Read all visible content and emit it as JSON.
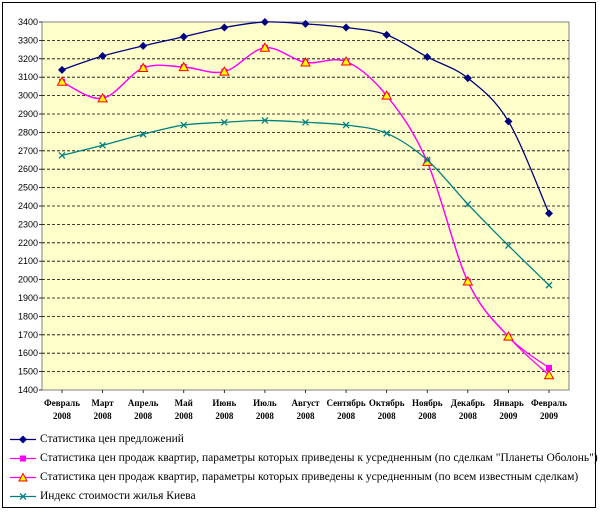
{
  "chart_data": {
    "type": "line",
    "title": "",
    "xlabel": "",
    "ylabel": "",
    "ylim": [
      1400,
      3400
    ],
    "ytick_step": 100,
    "grid": "horizontal dashed",
    "plot_background": "#FFFFCC",
    "categories": [
      [
        "Февраль",
        "2008"
      ],
      [
        "Март",
        "2008"
      ],
      [
        "Апрель",
        "2008"
      ],
      [
        "Май",
        "2008"
      ],
      [
        "Июнь",
        "2008"
      ],
      [
        "Июль",
        "2008"
      ],
      [
        "Август",
        "2008"
      ],
      [
        "Сентябрь",
        "2008"
      ],
      [
        "Октябрь",
        "2008"
      ],
      [
        "Ноябрь",
        "2008"
      ],
      [
        "Декабрь",
        "2008"
      ],
      [
        "Январь",
        "2009"
      ],
      [
        "Февраль",
        "2009"
      ]
    ],
    "y_ticks": [
      "1400",
      "1500",
      "1600",
      "1700",
      "1800",
      "1900",
      "2000",
      "2100",
      "2200",
      "2300",
      "2400",
      "2500",
      "2600",
      "2700",
      "2800",
      "2900",
      "3000",
      "3100",
      "3200",
      "3300",
      "3400"
    ],
    "series": [
      {
        "name": "Статистика цен предложений",
        "color": "#000080",
        "marker": "diamond",
        "values": [
          3140,
          3215,
          3270,
          3320,
          3370,
          3400,
          3390,
          3370,
          3330,
          3210,
          3095,
          2860,
          2360
        ]
      },
      {
        "name": "Статистика цен продаж квартир, параметры которых приведены к усредненным (по сделкам \"Планеты Оболонь\")",
        "color": "#FF00FF",
        "marker": "square",
        "values": [
          3075,
          2985,
          3150,
          3155,
          3130,
          3260,
          3180,
          3185,
          3000,
          2640,
          1990,
          1690,
          1520
        ]
      },
      {
        "name": "Статистика цен продаж квартир, параметры которых приведены к усредненным (по всем известным сделкам)",
        "color": "#FF00FF",
        "marker": "triangle",
        "values": [
          3075,
          2985,
          3150,
          3155,
          3130,
          3260,
          3180,
          3185,
          3000,
          2640,
          1990,
          1690,
          1480
        ]
      },
      {
        "name": "Индекс стоимости жилья Киева",
        "color": "#008080",
        "marker": "x",
        "values": [
          2675,
          2730,
          2790,
          2840,
          2855,
          2865,
          2855,
          2840,
          2795,
          2650,
          2410,
          2185,
          1970
        ]
      }
    ]
  }
}
